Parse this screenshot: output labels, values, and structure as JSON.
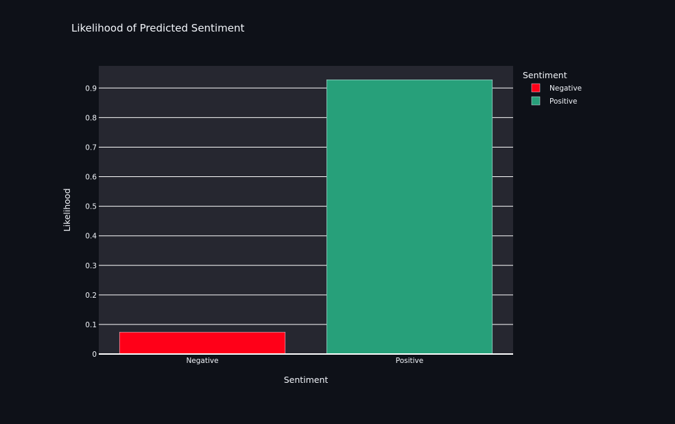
{
  "chart_data": {
    "type": "bar",
    "title": "Likelihood of Predicted Sentiment",
    "xlabel": "Sentiment",
    "ylabel": "Likelihood",
    "categories": [
      "Negative",
      "Positive"
    ],
    "values": [
      0.074,
      0.928
    ],
    "colors": [
      "#ff0018",
      "#27a07a"
    ],
    "ylim": [
      0,
      0.975
    ],
    "yticks": [
      0,
      0.1,
      0.2,
      0.3,
      0.4,
      0.5,
      0.6,
      0.7,
      0.8,
      0.9
    ],
    "ytick_labels": [
      "0",
      "0.1",
      "0.2",
      "0.3",
      "0.4",
      "0.5",
      "0.6",
      "0.7",
      "0.8",
      "0.9"
    ],
    "grid": true,
    "legend": {
      "title": "Sentiment",
      "position": "top-right",
      "entries": [
        "Negative",
        "Positive"
      ]
    },
    "plot_background": "#262730"
  }
}
